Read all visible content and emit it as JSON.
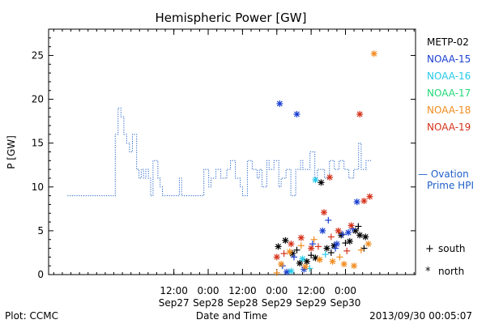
{
  "chart_data": {
    "type": "line",
    "title": "Hemispheric Power [GW]",
    "xlabel": "Date and Time",
    "ylabel": "P [GW]",
    "x_range_hours": [
      -55.8,
      72.5
    ],
    "ylim": [
      0,
      28
    ],
    "y_ticks": [
      0,
      5,
      10,
      15,
      20,
      25
    ],
    "x_ticks": [
      {
        "hour": -12,
        "time": "12:00",
        "date": "Sep27"
      },
      {
        "hour": 0,
        "time": "0:00",
        "date": "Sep28"
      },
      {
        "hour": 12,
        "time": "12:00",
        "date": "Sep28"
      },
      {
        "hour": 24,
        "time": "0:00",
        "date": "Sep29"
      },
      {
        "hour": 36,
        "time": "12:00",
        "date": "Sep29"
      },
      {
        "hour": 48,
        "time": "0:00",
        "date": "Sep30"
      }
    ],
    "legend": [
      {
        "name": "METP-02",
        "color": "#000000"
      },
      {
        "name": "NOAA-15",
        "color": "#1a3fd0"
      },
      {
        "name": "NOAA-16",
        "color": "#26c9e8"
      },
      {
        "name": "NOAA-17",
        "color": "#22d97a"
      },
      {
        "name": "NOAA-18",
        "color": "#f08c1e"
      },
      {
        "name": "NOAA-19",
        "color": "#d4321a"
      }
    ],
    "ovation_label_line1": "— Ovation",
    "ovation_label_line2": "Prime HPI",
    "ovation_color": "#1e5fc8",
    "marker_legend": [
      {
        "symbol": "+",
        "label": "south"
      },
      {
        "symbol": "*",
        "label": "north"
      }
    ],
    "ovation_series": [
      [
        -49.2,
        9
      ],
      [
        -32.5,
        9
      ],
      [
        -32.5,
        16
      ],
      [
        -31.5,
        16
      ],
      [
        -31.5,
        19
      ],
      [
        -30.5,
        19
      ],
      [
        -30.5,
        18
      ],
      [
        -29.5,
        18
      ],
      [
        -29.5,
        16
      ],
      [
        -28.5,
        16
      ],
      [
        -28.5,
        15
      ],
      [
        -27.5,
        15
      ],
      [
        -27.5,
        14
      ],
      [
        -26.5,
        14
      ],
      [
        -26.5,
        16
      ],
      [
        -25.0,
        16
      ],
      [
        -25.0,
        12
      ],
      [
        -24.2,
        12
      ],
      [
        -24.2,
        11
      ],
      [
        -23.4,
        11
      ],
      [
        -23.4,
        12
      ],
      [
        -22.6,
        12
      ],
      [
        -22.6,
        11
      ],
      [
        -21.8,
        11
      ],
      [
        -21.8,
        12
      ],
      [
        -20.9,
        12
      ],
      [
        -20.9,
        11
      ],
      [
        -20.1,
        11
      ],
      [
        -20.1,
        9
      ],
      [
        -19.3,
        9
      ],
      [
        -19.3,
        13
      ],
      [
        -17.6,
        13
      ],
      [
        -17.6,
        11
      ],
      [
        -16.8,
        11
      ],
      [
        -16.8,
        10
      ],
      [
        -16.0,
        10
      ],
      [
        -16.0,
        9
      ],
      [
        -10.1,
        9
      ],
      [
        -10.1,
        11
      ],
      [
        -9.3,
        11
      ],
      [
        -9.3,
        9
      ],
      [
        -1.5,
        9
      ],
      [
        -1.5,
        12
      ],
      [
        0.2,
        12
      ],
      [
        0.2,
        10
      ],
      [
        1.0,
        10
      ],
      [
        1.0,
        11
      ],
      [
        2.7,
        11
      ],
      [
        2.7,
        12
      ],
      [
        4.4,
        12
      ],
      [
        4.4,
        11
      ],
      [
        6.5,
        11
      ],
      [
        6.5,
        12
      ],
      [
        7.8,
        12
      ],
      [
        7.8,
        13
      ],
      [
        9.5,
        13
      ],
      [
        9.5,
        11
      ],
      [
        11.2,
        11
      ],
      [
        11.2,
        10
      ],
      [
        12.0,
        10
      ],
      [
        12.0,
        9
      ],
      [
        13.7,
        9
      ],
      [
        13.7,
        13
      ],
      [
        15.4,
        13
      ],
      [
        15.4,
        12
      ],
      [
        17.1,
        12
      ],
      [
        17.1,
        11
      ],
      [
        17.9,
        11
      ],
      [
        17.9,
        12
      ],
      [
        18.8,
        12
      ],
      [
        18.8,
        10
      ],
      [
        20.5,
        10
      ],
      [
        20.5,
        13
      ],
      [
        21.3,
        13
      ],
      [
        21.3,
        12
      ],
      [
        23.0,
        12
      ],
      [
        23.0,
        13
      ],
      [
        24.7,
        13
      ],
      [
        24.7,
        10
      ],
      [
        25.5,
        10
      ],
      [
        25.5,
        11
      ],
      [
        27.2,
        11
      ],
      [
        27.2,
        12
      ],
      [
        28.9,
        12
      ],
      [
        28.9,
        9
      ],
      [
        30.6,
        9
      ],
      [
        30.6,
        12
      ],
      [
        32.3,
        12
      ],
      [
        32.3,
        13
      ],
      [
        33.1,
        13
      ],
      [
        33.1,
        12
      ],
      [
        35.6,
        12
      ],
      [
        35.6,
        14
      ],
      [
        37.3,
        14
      ],
      [
        37.3,
        11
      ],
      [
        38.2,
        11
      ],
      [
        38.2,
        12
      ],
      [
        40.7,
        12
      ],
      [
        40.7,
        11
      ],
      [
        42.4,
        11
      ],
      [
        42.4,
        13
      ],
      [
        44.1,
        13
      ],
      [
        44.1,
        12
      ],
      [
        45.8,
        12
      ],
      [
        45.8,
        13
      ],
      [
        47.5,
        13
      ],
      [
        47.5,
        12
      ],
      [
        49.2,
        12
      ],
      [
        49.2,
        11
      ],
      [
        50.9,
        11
      ],
      [
        50.9,
        12
      ],
      [
        52.6,
        12
      ],
      [
        52.6,
        15
      ],
      [
        53.5,
        15
      ],
      [
        53.5,
        12
      ],
      [
        55.2,
        12
      ],
      [
        55.2,
        13
      ],
      [
        56.9,
        13
      ]
    ],
    "satellite_points": [
      {
        "sat": "METP-02",
        "m": "*",
        "x": 24.5,
        "y": 3.2
      },
      {
        "sat": "METP-02",
        "m": "*",
        "x": 27.0,
        "y": 3.9
      },
      {
        "sat": "METP-02",
        "m": "*",
        "x": 29.5,
        "y": 2.4
      },
      {
        "sat": "METP-02",
        "m": "*",
        "x": 32.0,
        "y": 1.3
      },
      {
        "sat": "METP-02",
        "m": "*",
        "x": 34.5,
        "y": 1.5
      },
      {
        "sat": "METP-02",
        "m": "*",
        "x": 37.5,
        "y": 1.9
      },
      {
        "sat": "METP-02",
        "m": "*",
        "x": 39.5,
        "y": 10.5
      },
      {
        "sat": "METP-02",
        "m": "*",
        "x": 41.5,
        "y": 3.0
      },
      {
        "sat": "METP-02",
        "m": "*",
        "x": 44.0,
        "y": 3.3
      },
      {
        "sat": "METP-02",
        "m": "*",
        "x": 46.5,
        "y": 4.5
      },
      {
        "sat": "METP-02",
        "m": "*",
        "x": 49.5,
        "y": 3.8
      },
      {
        "sat": "METP-02",
        "m": "*",
        "x": 51.5,
        "y": 5.0
      },
      {
        "sat": "METP-02",
        "m": "*",
        "x": 53.0,
        "y": 4.5
      },
      {
        "sat": "METP-02",
        "m": "*",
        "x": 55.0,
        "y": 4.3
      },
      {
        "sat": "METP-02",
        "m": "+",
        "x": 31.0,
        "y": 2.8
      },
      {
        "sat": "METP-02",
        "m": "+",
        "x": 36.0,
        "y": 2.2
      },
      {
        "sat": "METP-02",
        "m": "+",
        "x": 43.0,
        "y": 2.5
      },
      {
        "sat": "METP-02",
        "m": "+",
        "x": 48.0,
        "y": 3.6
      },
      {
        "sat": "METP-02",
        "m": "+",
        "x": 52.5,
        "y": 5.5
      },
      {
        "sat": "METP-02",
        "m": "+",
        "x": 54.5,
        "y": 3.0
      },
      {
        "sat": "NOAA-15",
        "m": "*",
        "x": 25.0,
        "y": 19.5
      },
      {
        "sat": "NOAA-15",
        "m": "*",
        "x": 31.0,
        "y": 18.3
      },
      {
        "sat": "NOAA-15",
        "m": "*",
        "x": 52.0,
        "y": 8.3
      },
      {
        "sat": "NOAA-15",
        "m": "*",
        "x": 27.5,
        "y": 0.3
      },
      {
        "sat": "NOAA-15",
        "m": "*",
        "x": 33.5,
        "y": 0.6
      },
      {
        "sat": "NOAA-15",
        "m": "*",
        "x": 40.0,
        "y": 5.0
      },
      {
        "sat": "NOAA-15",
        "m": "*",
        "x": 45.0,
        "y": 3.5
      },
      {
        "sat": "NOAA-15",
        "m": "*",
        "x": 49.0,
        "y": 4.8
      },
      {
        "sat": "NOAA-15",
        "m": "+",
        "x": 26.0,
        "y": 1.0
      },
      {
        "sat": "NOAA-15",
        "m": "+",
        "x": 30.0,
        "y": 2.0
      },
      {
        "sat": "NOAA-15",
        "m": "+",
        "x": 36.5,
        "y": 3.5
      },
      {
        "sat": "NOAA-15",
        "m": "+",
        "x": 42.0,
        "y": 6.2
      },
      {
        "sat": "NOAA-15",
        "m": "+",
        "x": 44.5,
        "y": 3.0
      },
      {
        "sat": "NOAA-15",
        "m": "+",
        "x": 47.0,
        "y": 4.6
      },
      {
        "sat": "NOAA-15",
        "m": "+",
        "x": 50.5,
        "y": 5.2
      },
      {
        "sat": "NOAA-16",
        "m": "*",
        "x": 37.5,
        "y": 10.8
      },
      {
        "sat": "NOAA-16",
        "m": "*",
        "x": 29.0,
        "y": 0.4
      },
      {
        "sat": "NOAA-16",
        "m": "*",
        "x": 33.0,
        "y": 1.8
      },
      {
        "sat": "NOAA-16",
        "m": "+",
        "x": 35.5,
        "y": 0.7
      },
      {
        "sat": "NOAA-16",
        "m": "+",
        "x": 41.0,
        "y": 2.3
      },
      {
        "sat": "NOAA-18",
        "m": "*",
        "x": 58.0,
        "y": 25.2
      },
      {
        "sat": "NOAA-18",
        "m": "*",
        "x": 25.5,
        "y": 1.2
      },
      {
        "sat": "NOAA-18",
        "m": "*",
        "x": 28.5,
        "y": 2.6
      },
      {
        "sat": "NOAA-18",
        "m": "*",
        "x": 34.0,
        "y": 0.9
      },
      {
        "sat": "NOAA-18",
        "m": "*",
        "x": 39.0,
        "y": 1.7
      },
      {
        "sat": "NOAA-18",
        "m": "*",
        "x": 43.5,
        "y": 1.5
      },
      {
        "sat": "NOAA-18",
        "m": "*",
        "x": 47.5,
        "y": 1.2
      },
      {
        "sat": "NOAA-18",
        "m": "*",
        "x": 51.0,
        "y": 1.0
      },
      {
        "sat": "NOAA-18",
        "m": "*",
        "x": 56.0,
        "y": 3.5
      },
      {
        "sat": "NOAA-18",
        "m": "+",
        "x": 24.0,
        "y": 0.2
      },
      {
        "sat": "NOAA-18",
        "m": "+",
        "x": 32.5,
        "y": 3.3
      },
      {
        "sat": "NOAA-18",
        "m": "+",
        "x": 37.0,
        "y": 4.0
      },
      {
        "sat": "NOAA-18",
        "m": "+",
        "x": 46.0,
        "y": 2.0
      },
      {
        "sat": "NOAA-18",
        "m": "+",
        "x": 53.5,
        "y": 2.8
      },
      {
        "sat": "NOAA-19",
        "m": "*",
        "x": 53.0,
        "y": 18.3
      },
      {
        "sat": "NOAA-19",
        "m": "*",
        "x": 42.5,
        "y": 11.1
      },
      {
        "sat": "NOAA-19",
        "m": "*",
        "x": 56.5,
        "y": 8.9
      },
      {
        "sat": "NOAA-19",
        "m": "*",
        "x": 54.5,
        "y": 8.4
      },
      {
        "sat": "NOAA-19",
        "m": "*",
        "x": 40.5,
        "y": 7.1
      },
      {
        "sat": "NOAA-19",
        "m": "*",
        "x": 24.0,
        "y": 2.0
      },
      {
        "sat": "NOAA-19",
        "m": "*",
        "x": 29.0,
        "y": 3.5
      },
      {
        "sat": "NOAA-19",
        "m": "*",
        "x": 32.5,
        "y": 4.2
      },
      {
        "sat": "NOAA-19",
        "m": "*",
        "x": 36.0,
        "y": 3.0
      },
      {
        "sat": "NOAA-19",
        "m": "*",
        "x": 45.5,
        "y": 5.0
      },
      {
        "sat": "NOAA-19",
        "m": "*",
        "x": 50.0,
        "y": 5.6
      },
      {
        "sat": "NOAA-19",
        "m": "+",
        "x": 26.5,
        "y": 2.4
      },
      {
        "sat": "NOAA-19",
        "m": "+",
        "x": 38.5,
        "y": 3.2
      },
      {
        "sat": "NOAA-19",
        "m": "+",
        "x": 43.0,
        "y": 4.3
      },
      {
        "sat": "NOAA-19",
        "m": "+",
        "x": 48.5,
        "y": 2.7
      }
    ]
  },
  "footer": {
    "plot_credit": "Plot: CCMC",
    "x_axis_caption": "Date and Time",
    "timestamp": "2013/09/30 00:05:07"
  }
}
